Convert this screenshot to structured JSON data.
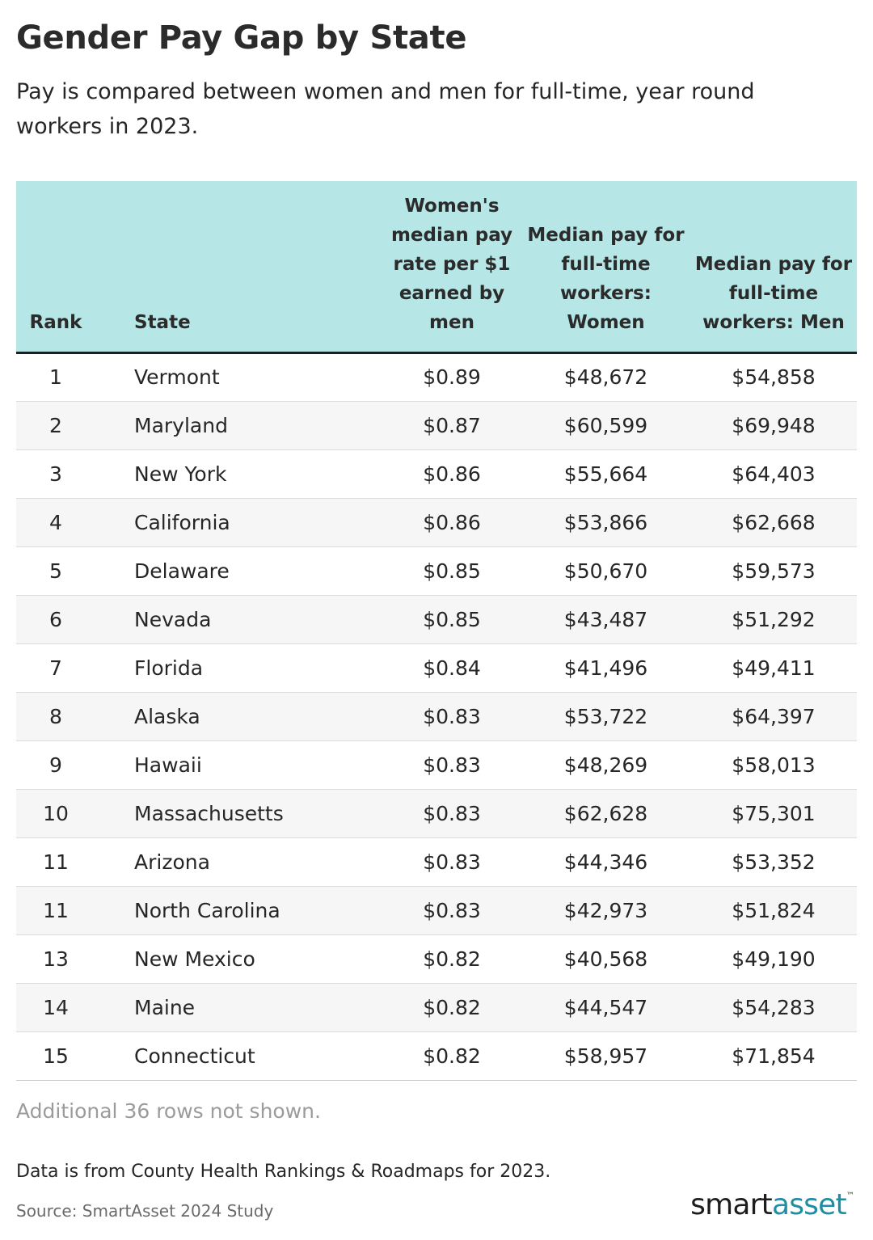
{
  "header": {
    "title": "Gender Pay Gap by State",
    "subtitle": "Pay is compared between women and men for full-time, year round workers in 2023."
  },
  "chart_data": {
    "type": "table",
    "columns": [
      "Rank",
      "State",
      "Women's median pay rate per $1 earned by men",
      "Median pay for full-time workers: Women",
      "Median pay for full-time workers: Men"
    ],
    "rows": [
      [
        "1",
        "Vermont",
        "$0.89",
        "$48,672",
        "$54,858"
      ],
      [
        "2",
        "Maryland",
        "$0.87",
        "$60,599",
        "$69,948"
      ],
      [
        "3",
        "New York",
        "$0.86",
        "$55,664",
        "$64,403"
      ],
      [
        "4",
        "California",
        "$0.86",
        "$53,866",
        "$62,668"
      ],
      [
        "5",
        "Delaware",
        "$0.85",
        "$50,670",
        "$59,573"
      ],
      [
        "6",
        "Nevada",
        "$0.85",
        "$43,487",
        "$51,292"
      ],
      [
        "7",
        "Florida",
        "$0.84",
        "$41,496",
        "$49,411"
      ],
      [
        "8",
        "Alaska",
        "$0.83",
        "$53,722",
        "$64,397"
      ],
      [
        "9",
        "Hawaii",
        "$0.83",
        "$48,269",
        "$58,013"
      ],
      [
        "10",
        "Massachusetts",
        "$0.83",
        "$62,628",
        "$75,301"
      ],
      [
        "11",
        "Arizona",
        "$0.83",
        "$44,346",
        "$53,352"
      ],
      [
        "11",
        "North Carolina",
        "$0.83",
        "$42,973",
        "$51,824"
      ],
      [
        "13",
        "New Mexico",
        "$0.82",
        "$40,568",
        "$49,190"
      ],
      [
        "14",
        "Maine",
        "$0.82",
        "$44,547",
        "$54,283"
      ],
      [
        "15",
        "Connecticut",
        "$0.82",
        "$58,957",
        "$71,854"
      ]
    ]
  },
  "footer": {
    "note": "Additional 36 rows not shown.",
    "data_source": "Data is from County Health Rankings & Roadmaps for 2023.",
    "source": "Source: SmartAsset 2024 Study"
  },
  "logo": {
    "part1": "smart",
    "part2": "asset",
    "trademark": "™"
  },
  "colors": {
    "header_bg": "#b7e6e6",
    "logo_accent": "#1f8ea3",
    "stripe": "#f6f6f6"
  }
}
